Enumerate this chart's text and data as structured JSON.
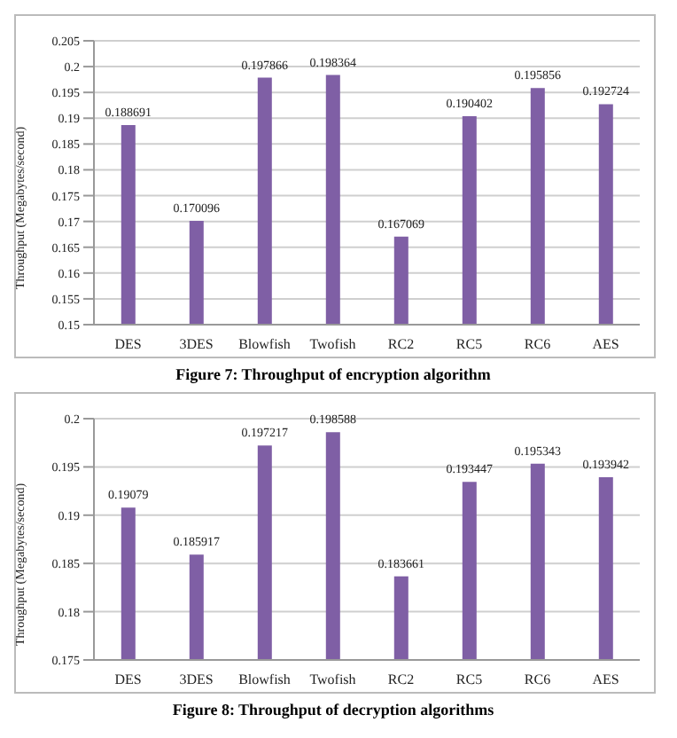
{
  "chart_data": [
    {
      "type": "bar",
      "title": "Figure 7: Throughput of encryption algorithm",
      "ylabel": "Throughput (Megabytes/second)",
      "categories": [
        "DES",
        "3DES",
        "Blowfish",
        "Twofish",
        "RC2",
        "RC5",
        "RC6",
        "AES"
      ],
      "values": [
        0.188691,
        0.170096,
        0.197866,
        0.198364,
        0.167069,
        0.190402,
        0.195856,
        0.192724
      ],
      "color": "#7f5fa5",
      "ylim": [
        0.15,
        0.205
      ],
      "yticks": [
        0.15,
        0.155,
        0.16,
        0.165,
        0.17,
        0.175,
        0.18,
        0.185,
        0.19,
        0.195,
        0.2,
        0.205
      ],
      "grid": "y",
      "data_labels": true
    },
    {
      "type": "bar",
      "title": "Figure 8: Throughput of decryption algorithms",
      "ylabel": "Throughput (Megabytes/second)",
      "categories": [
        "DES",
        "3DES",
        "Blowfish",
        "Twofish",
        "RC2",
        "RC5",
        "RC6",
        "AES"
      ],
      "values": [
        0.19079,
        0.185917,
        0.197217,
        0.198588,
        0.183661,
        0.193447,
        0.195343,
        0.193942
      ],
      "color": "#7f5fa5",
      "ylim": [
        0.175,
        0.2
      ],
      "yticks": [
        0.175,
        0.18,
        0.185,
        0.19,
        0.195,
        0.2
      ],
      "grid": "y",
      "data_labels": true
    }
  ]
}
